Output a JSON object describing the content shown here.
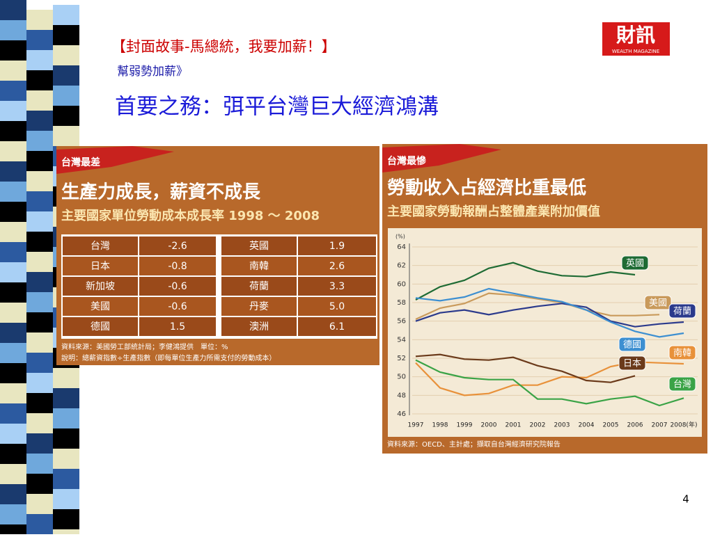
{
  "header": {
    "title": "【封面故事-馬總統，我要加薪！】",
    "subtitle": "幫弱勢加薪》",
    "headline": "首要之務：弭平台灣巨大經濟鴻溝",
    "logo": "財訊",
    "logo_sub": "WEALTH MAGAZINE"
  },
  "table": {
    "badge": "台灣最差",
    "title": "生產力成長，薪資不成長",
    "subtitle": "主要國家單位勞動成本成長率 1998 ～ 2008",
    "rows": [
      [
        "台灣",
        "-2.6",
        "英國",
        "1.9"
      ],
      [
        "日本",
        "-0.8",
        "南韓",
        "2.6"
      ],
      [
        "新加坡",
        "-0.6",
        "荷蘭",
        "3.3"
      ],
      [
        "美國",
        "-0.6",
        "丹麥",
        "5.0"
      ],
      [
        "德國",
        "1.5",
        "澳洲",
        "6.1"
      ]
    ],
    "notes": [
      "資料來源：美國勞工部統計局；李健鴻提供　單位：%",
      "說明：總薪資指數÷生產指數（即每單位生產力所需支付的勞動成本）"
    ]
  },
  "chart_data": {
    "type": "line",
    "badge": "台灣最慘",
    "title": "勞動收入占經濟比重最低",
    "subtitle": "主要國家勞動報酬占整體產業附加價值",
    "unit": "(%)",
    "categories": [
      "1997",
      "1998",
      "1999",
      "2000",
      "2001",
      "2002",
      "2003",
      "2004",
      "2005",
      "2006",
      "2007",
      "2008(年)"
    ],
    "ylim": [
      46,
      64
    ],
    "yticks": [
      46,
      48,
      50,
      52,
      54,
      56,
      58,
      60,
      62,
      64
    ],
    "series": [
      {
        "name": "英國",
        "color": "#1e6b34",
        "values": [
          58.3,
          59.7,
          60.4,
          61.7,
          62.3,
          61.4,
          60.9,
          60.8,
          61.3,
          61.0,
          null,
          null
        ]
      },
      {
        "name": "美國",
        "color": "#c99a5b",
        "values": [
          56.2,
          57.4,
          57.9,
          59.0,
          58.8,
          58.4,
          58.0,
          57.2,
          56.6,
          56.6,
          56.7,
          null
        ]
      },
      {
        "name": "荷蘭",
        "color": "#2b3a8c",
        "values": [
          56.0,
          56.9,
          57.2,
          56.7,
          57.2,
          57.6,
          57.9,
          57.5,
          56.0,
          55.4,
          55.7,
          55.9
        ]
      },
      {
        "name": "德國",
        "color": "#3d8fd1",
        "values": [
          58.5,
          58.2,
          58.6,
          59.5,
          59.0,
          58.5,
          58.1,
          57.2,
          55.9,
          54.9,
          54.3,
          54.7
        ]
      },
      {
        "name": "南韓",
        "color": "#e8913a",
        "values": [
          51.5,
          48.8,
          48.0,
          48.2,
          49.1,
          49.1,
          50.0,
          49.9,
          51.1,
          51.6,
          51.5,
          51.4
        ]
      },
      {
        "name": "日本",
        "color": "#6b3a1a",
        "values": [
          52.2,
          52.4,
          51.9,
          51.8,
          52.1,
          51.2,
          50.6,
          49.6,
          49.4,
          50.1,
          null,
          null
        ]
      },
      {
        "name": "台灣",
        "color": "#3aa346",
        "values": [
          51.8,
          50.5,
          49.9,
          49.7,
          49.7,
          47.6,
          47.6,
          47.1,
          47.6,
          47.9,
          46.9,
          47.7
        ]
      }
    ],
    "source": "資料來源：OECD、主計處；擷取自台灣經濟研究院報告"
  },
  "page_number": "4"
}
